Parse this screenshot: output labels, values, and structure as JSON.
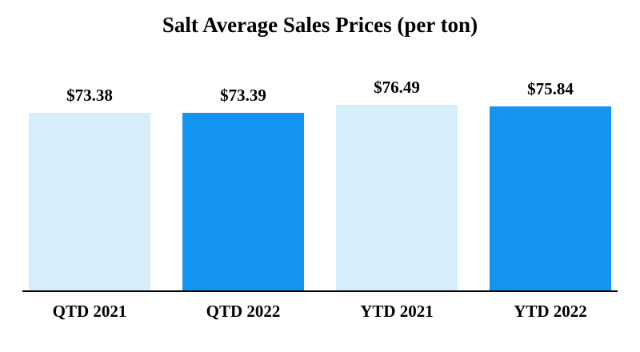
{
  "chart_data": {
    "type": "bar",
    "title": "Salt Average Sales Prices (per ton)",
    "categories": [
      "QTD 2021",
      "QTD 2022",
      "YTD 2021",
      "YTD 2022"
    ],
    "values": [
      73.38,
      73.39,
      76.49,
      75.84
    ],
    "labels": [
      "$73.38",
      "$73.39",
      "$76.49",
      "$75.84"
    ],
    "colors": [
      "#d6edfc",
      "#1496f0",
      "#d6edfc",
      "#1496f0"
    ],
    "xlabel": "",
    "ylabel": "",
    "ylim": [
      0,
      80
    ],
    "grid": false,
    "legend": "none",
    "baseline_color": "#000000"
  }
}
